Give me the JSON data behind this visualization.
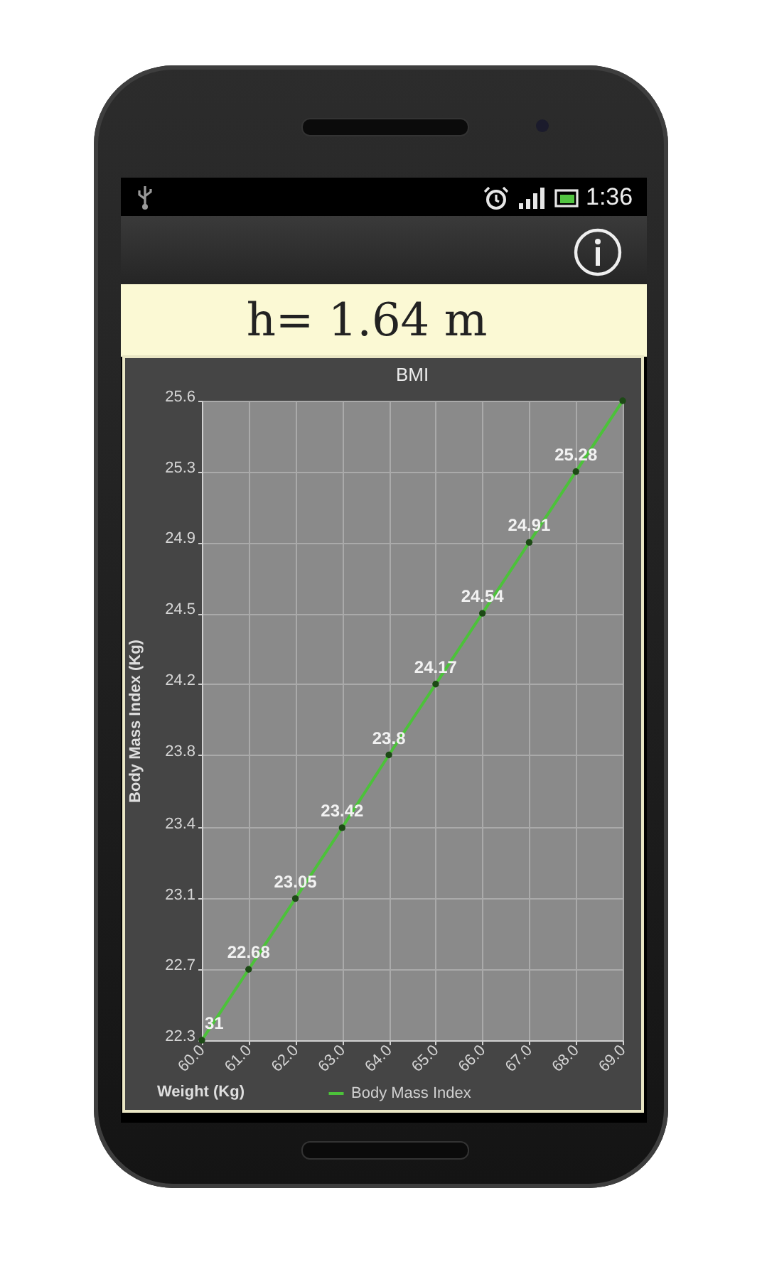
{
  "chart_data": {
    "type": "line",
    "title": "BMI",
    "xlabel": "Weight (Kg)",
    "ylabel": "Body Mass Index (Kg)",
    "annotations": [
      "h= 1.64 m",
      "1:36",
      {
        "text": "31",
        "x": 60,
        "y": 22.31
      }
    ],
    "x": [
      60,
      61,
      62,
      63,
      64,
      65,
      66,
      67,
      68,
      69
    ],
    "series": [
      {
        "name": "Body Mass Index",
        "color": "#4cc23a",
        "values": [
          22.31,
          22.68,
          23.05,
          23.42,
          23.8,
          24.17,
          24.54,
          24.91,
          25.28,
          25.65
        ],
        "value_labels": [
          null,
          "22.68",
          "23.05",
          "23.42",
          "23.8",
          "24.17",
          "24.54",
          "24.91",
          "25.28",
          null
        ]
      }
    ],
    "xlim": [
      60,
      69
    ],
    "xticks": [
      {
        "value": 60,
        "label": "60.0"
      },
      {
        "value": 61,
        "label": "61.0"
      },
      {
        "value": 62,
        "label": "62.0"
      },
      {
        "value": 63,
        "label": "63.0"
      },
      {
        "value": 64,
        "label": "64.0"
      },
      {
        "value": 65,
        "label": "65.0"
      },
      {
        "value": 66,
        "label": "66.0"
      },
      {
        "value": 67,
        "label": "67.0"
      },
      {
        "value": 68,
        "label": "68.0"
      },
      {
        "value": 69,
        "label": "69.0"
      }
    ],
    "ylim": [
      22.31,
      25.65
    ],
    "yticks": [
      {
        "value": 22.31,
        "label": "22.3"
      },
      {
        "value": 22.68,
        "label": "22.7"
      },
      {
        "value": 23.05,
        "label": "23.1"
      },
      {
        "value": 23.42,
        "label": "23.4"
      },
      {
        "value": 23.8,
        "label": "23.8"
      },
      {
        "value": 24.17,
        "label": "24.2"
      },
      {
        "value": 24.54,
        "label": "24.5"
      },
      {
        "value": 24.91,
        "label": "24.9"
      },
      {
        "value": 25.28,
        "label": "25.3"
      },
      {
        "value": 25.65,
        "label": "25.6"
      }
    ],
    "grid": true,
    "legend": "bottom",
    "marker": "circle",
    "line_style": "solid"
  }
}
